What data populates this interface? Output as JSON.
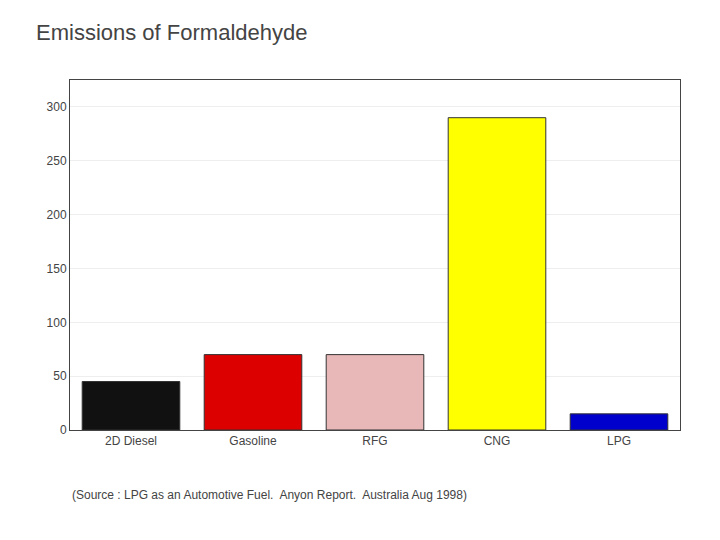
{
  "chart_data": {
    "type": "bar",
    "title": "Emissions of Formaldehyde",
    "categories": [
      "2D Diesel",
      "Gasoline",
      "RFG",
      "CNG",
      "LPG"
    ],
    "values": [
      45,
      70,
      70,
      290,
      15
    ],
    "colors": [
      "#111111",
      "#dd0000",
      "#e8b8b8",
      "#ffff00",
      "#0000cc"
    ],
    "ylim": [
      0,
      325
    ],
    "yticks": [
      0,
      50,
      100,
      150,
      200,
      250,
      300
    ],
    "grid": true,
    "annotations": [
      "(Source : LPG as an Automotive Fuel.  Anyon Report.  Australia Aug 1998)"
    ]
  }
}
